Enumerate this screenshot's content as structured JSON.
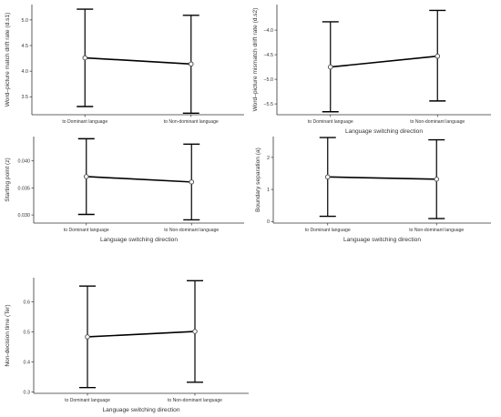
{
  "chart_data": [
    {
      "type": "line",
      "categories": [
        "to Dominant language",
        "to Non-dominant language"
      ],
      "series": [
        {
          "values": [
            4.26,
            4.14
          ],
          "lower": [
            3.31,
            3.18
          ],
          "upper": [
            5.21,
            5.09
          ]
        }
      ],
      "title": "",
      "xlabel": "",
      "ylabel": "Word–picture match drift rate (d.s1)",
      "yticks": [
        3.5,
        4.0,
        4.5,
        5.0
      ],
      "ytick_labels": [
        "3.5",
        "4.0",
        "4.5",
        "5.0"
      ],
      "ylim": [
        3.15,
        5.3
      ],
      "grid": false,
      "error_bars": true
    },
    {
      "type": "line",
      "categories": [
        "to Dominant language",
        "to Non-dominant language"
      ],
      "series": [
        {
          "values": [
            -4.75,
            -4.53
          ],
          "lower": [
            -5.66,
            -5.44
          ],
          "upper": [
            -3.83,
            -3.6
          ]
        }
      ],
      "title": "",
      "xlabel": "Language switching direction",
      "ylabel": "Word–picture mismatch drift rate (d.s2)",
      "yticks": [
        -5.5,
        -5.0,
        -4.5,
        -4.0
      ],
      "ytick_labels": [
        "−5.5",
        "−5.0",
        "−4.5",
        "−4.0"
      ],
      "ylim": [
        -5.72,
        -3.48
      ],
      "grid": false,
      "error_bars": true
    },
    {
      "type": "line",
      "categories": [
        "to Dominant language",
        "to Non-dominant language"
      ],
      "series": [
        {
          "values": [
            0.0371,
            0.0361
          ],
          "lower": [
            0.0301,
            0.0291
          ],
          "upper": [
            0.0441,
            0.0431
          ]
        }
      ],
      "title": "",
      "xlabel": "Language switching direction",
      "ylabel": "Starting point (z)",
      "yticks": [
        0.03,
        0.035,
        0.04
      ],
      "ytick_labels": [
        "0.030",
        "0.035",
        "0.040"
      ],
      "ylim": [
        0.0285,
        0.0445
      ],
      "grid": false,
      "error_bars": true
    },
    {
      "type": "line",
      "categories": [
        "to Dominant language",
        "to Non-dominant language"
      ],
      "series": [
        {
          "values": [
            1.39,
            1.32
          ],
          "lower": [
            0.16,
            0.09
          ],
          "upper": [
            2.62,
            2.55
          ]
        }
      ],
      "title": "",
      "xlabel": "Language switching direction",
      "ylabel": "Boundary separation (a)",
      "yticks": [
        0,
        1,
        2
      ],
      "ytick_labels": [
        "0",
        "1",
        "2"
      ],
      "ylim": [
        -0.05,
        2.65
      ],
      "grid": false,
      "error_bars": true
    },
    {
      "type": "line",
      "categories": [
        "to Dominant language",
        "to Non-dominant language"
      ],
      "series": [
        {
          "values": [
            0.483,
            0.501
          ],
          "lower": [
            0.314,
            0.332
          ],
          "upper": [
            0.652,
            0.67
          ]
        }
      ],
      "title": "",
      "xlabel": "Language switching direction",
      "ylabel": "Non-decision time (Ter)",
      "yticks": [
        0.3,
        0.4,
        0.5,
        0.6
      ],
      "ytick_labels": [
        "0.3",
        "0.4",
        "0.5",
        "0.6"
      ],
      "ylim": [
        0.295,
        0.68
      ],
      "grid": false,
      "error_bars": true
    }
  ]
}
